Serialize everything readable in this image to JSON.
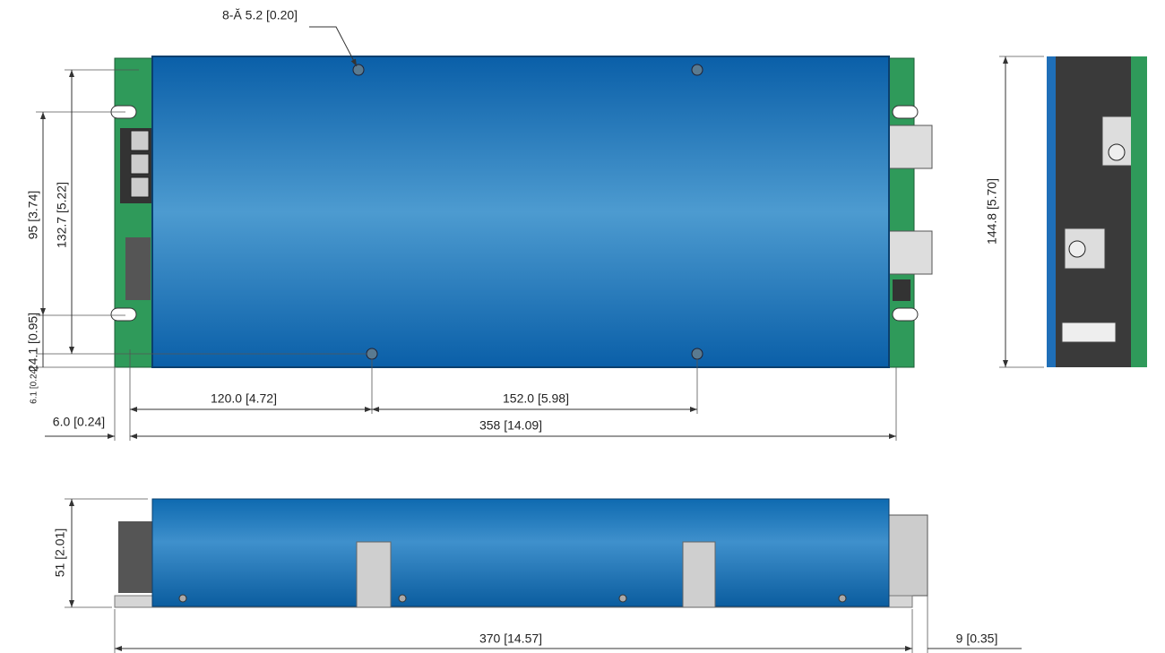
{
  "hole_callout": "8-Ă 5.2 [0.20]",
  "dimensions": [
    "95 [3.74]",
    "132.7 [5.22]",
    "24.1 [0.95]",
    "6.1 [0.24]",
    "120.0 [4.72]",
    "152.0 [5.98]",
    "6.0 [0.24]",
    "358 [14.09]",
    "144.8 [5.70]",
    "51 [2.01]",
    "370 [14.57]",
    "9 [0.35]"
  ]
}
